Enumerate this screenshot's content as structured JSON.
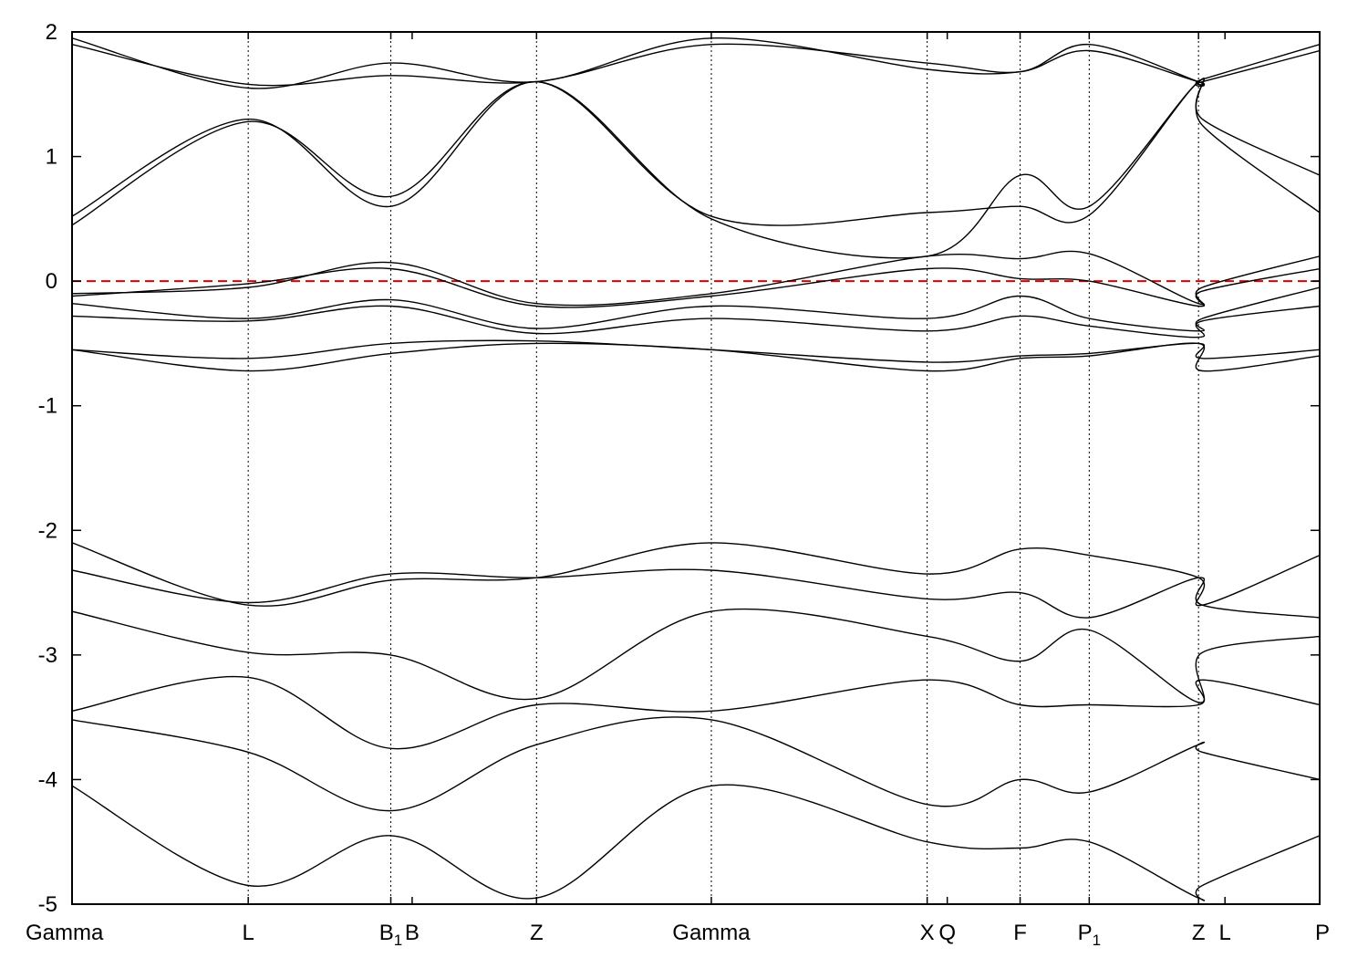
{
  "chart_data": {
    "type": "line",
    "title": "",
    "xlabel": "",
    "ylabel": "",
    "ylim": [
      -5,
      2
    ],
    "y_ticks": [
      "2",
      "1",
      "0",
      "-1",
      "-2",
      "-3",
      "-4",
      "-5"
    ],
    "fermi_level": 0,
    "fermi_line_color": "#e00000",
    "band_color": "#000000",
    "grid": "vertical dotted lines at high-symmetry points",
    "x_ticks": [
      {
        "x": 0.0,
        "label": "Gamma"
      },
      {
        "x": 0.1412,
        "label": "L"
      },
      {
        "x": 0.2555,
        "label": "B",
        "sub": "1"
      },
      {
        "x": 0.2726,
        "label": "B"
      },
      {
        "x": 0.3723,
        "label": "Z"
      },
      {
        "x": 0.5124,
        "label": "Gamma"
      },
      {
        "x": 0.6854,
        "label": "X"
      },
      {
        "x": 0.7015,
        "label": "Q"
      },
      {
        "x": 0.7599,
        "label": "F"
      },
      {
        "x": 0.8153,
        "label": "P",
        "sub": "1"
      },
      {
        "x": 0.9029,
        "label": "Z"
      },
      {
        "x": 0.9241,
        "label": "L"
      },
      {
        "x": 1.0,
        "label": "P"
      }
    ],
    "vertical_lines_at": [
      0.1412,
      0.2555,
      0.3723,
      0.5124,
      0.6854,
      0.7599,
      0.8153,
      0.9029
    ],
    "x": [
      0.0,
      0.1412,
      0.2555,
      0.3723,
      0.5124,
      0.6854,
      0.7599,
      0.8153,
      0.9029,
      0.906,
      1.0
    ],
    "series": [
      {
        "values": [
          0.52,
          1.3,
          0.6,
          1.6,
          0.5,
          0.2,
          0.85,
          0.6,
          1.6,
          1.3,
          0.85
        ]
      },
      {
        "values": [
          0.45,
          1.28,
          0.68,
          1.6,
          0.52,
          0.55,
          0.6,
          0.53,
          1.6,
          1.25,
          0.55
        ]
      },
      {
        "values": [
          1.95,
          1.55,
          1.75,
          1.6,
          1.95,
          1.7,
          1.68,
          1.85,
          1.6,
          1.62,
          1.9
        ]
      },
      {
        "values": [
          1.9,
          1.58,
          1.65,
          1.6,
          1.9,
          1.75,
          1.68,
          1.9,
          1.6,
          1.6,
          1.85
        ]
      },
      {
        "values": [
          -0.1,
          -0.05,
          0.15,
          -0.18,
          -0.1,
          0.2,
          0.18,
          0.22,
          -0.18,
          -0.05,
          0.2
        ]
      },
      {
        "values": [
          -0.12,
          -0.02,
          0.1,
          -0.2,
          -0.12,
          0.1,
          0.02,
          0.0,
          -0.2,
          -0.08,
          0.1
        ]
      },
      {
        "values": [
          -0.18,
          -0.3,
          -0.15,
          -0.38,
          -0.2,
          -0.3,
          -0.12,
          -0.3,
          -0.4,
          -0.3,
          -0.05
        ]
      },
      {
        "values": [
          -0.28,
          -0.32,
          -0.2,
          -0.42,
          -0.3,
          -0.4,
          -0.28,
          -0.36,
          -0.45,
          -0.32,
          -0.2
        ]
      },
      {
        "values": [
          -0.55,
          -0.62,
          -0.5,
          -0.48,
          -0.55,
          -0.65,
          -0.6,
          -0.58,
          -0.5,
          -0.62,
          -0.55
        ]
      },
      {
        "values": [
          -0.55,
          -0.72,
          -0.58,
          -0.5,
          -0.55,
          -0.72,
          -0.62,
          -0.6,
          -0.5,
          -0.72,
          -0.6
        ]
      },
      {
        "values": [
          -2.1,
          -2.6,
          -2.4,
          -2.38,
          -2.1,
          -2.35,
          -2.15,
          -2.2,
          -2.38,
          -2.6,
          -2.2
        ]
      },
      {
        "values": [
          -2.32,
          -2.58,
          -2.35,
          -2.38,
          -2.32,
          -2.55,
          -2.5,
          -2.7,
          -2.38,
          -2.6,
          -2.7
        ]
      },
      {
        "values": [
          -2.65,
          -2.98,
          -3.0,
          -3.35,
          -2.65,
          -2.85,
          -3.05,
          -2.8,
          -3.38,
          -2.98,
          -2.85
        ]
      },
      {
        "values": [
          -3.45,
          -3.18,
          -3.75,
          -3.4,
          -3.45,
          -3.2,
          -3.4,
          -3.4,
          -3.4,
          -3.2,
          -3.4
        ]
      },
      {
        "values": [
          -3.52,
          -3.78,
          -4.25,
          -3.72,
          -3.52,
          -4.2,
          -4.0,
          -4.1,
          -3.72,
          -3.78,
          -4.0
        ]
      },
      {
        "values": [
          -4.05,
          -4.85,
          -4.45,
          -4.95,
          -4.05,
          -4.5,
          -4.55,
          -4.5,
          -4.95,
          -4.85,
          -4.45
        ]
      }
    ]
  }
}
